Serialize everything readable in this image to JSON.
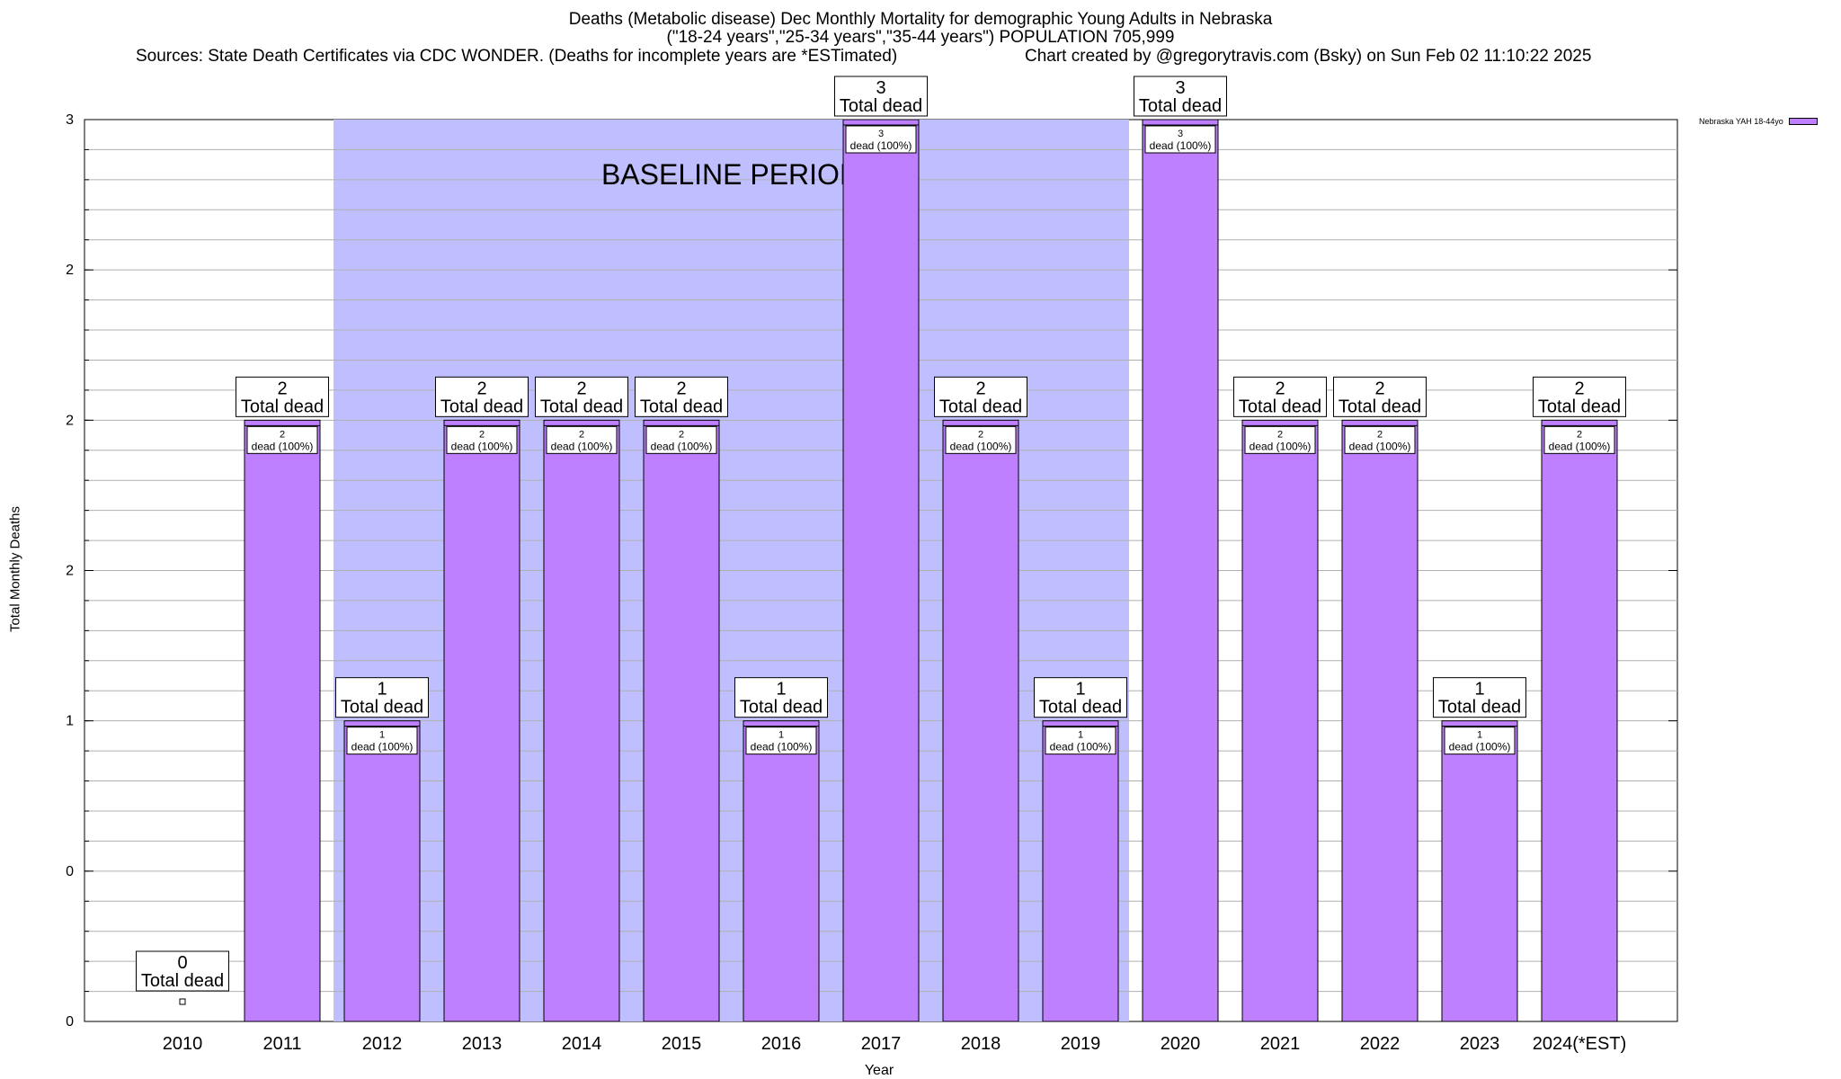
{
  "colors": {
    "bar": "#bf80ff",
    "baseline_shade": "#bfbfff",
    "grid": "#b0b0b0",
    "axis": "#000000"
  },
  "chart_data": {
    "type": "bar",
    "title": "Deaths (Metabolic disease) Dec Monthly Mortality for demographic Young Adults in Nebraska",
    "subtitle": "(\"18-24 years\",\"25-34 years\",\"35-44 years\") POPULATION 705,999",
    "source": "Sources: State Death Certificates via CDC WONDER. (Deaths for incomplete years are *ESTimated)",
    "credit": "Chart created by @gregorytravis.com (Bsky) on Sun Feb 02 11:10:22 2025",
    "xlabel": "Year",
    "ylabel": "Total Monthly Deaths",
    "categories": [
      "2010",
      "2011",
      "2012",
      "2013",
      "2014",
      "2015",
      "2016",
      "2017",
      "2018",
      "2019",
      "2020",
      "2021",
      "2022",
      "2023",
      "2024(*EST)"
    ],
    "series": [
      {
        "name": "Nebraska YAH 18-44yo",
        "values": [
          0,
          2,
          1,
          2,
          2,
          2,
          1,
          3,
          2,
          1,
          3,
          2,
          2,
          1,
          2
        ]
      }
    ],
    "ylim": [
      0,
      3
    ],
    "ytick_labels": [
      "0",
      "0",
      "1",
      "2",
      "2",
      "2",
      "3"
    ],
    "top_labels": [
      "0",
      "2",
      "1",
      "2",
      "2",
      "2",
      "1",
      "3",
      "2",
      "1",
      "3",
      "2",
      "2",
      "1",
      "2"
    ],
    "top_label_suffix": "Total dead",
    "inner_labels": [
      "2",
      "1",
      "2",
      "2",
      "2",
      "1",
      "3",
      "2",
      "1",
      "3",
      "2",
      "2",
      "1",
      "2"
    ],
    "inner_label_suffix": "dead (100%)",
    "baseline": {
      "label": "BASELINE PERIOD",
      "start": "2012",
      "end": "2019"
    },
    "grid": true,
    "legend_position": "top-right"
  }
}
